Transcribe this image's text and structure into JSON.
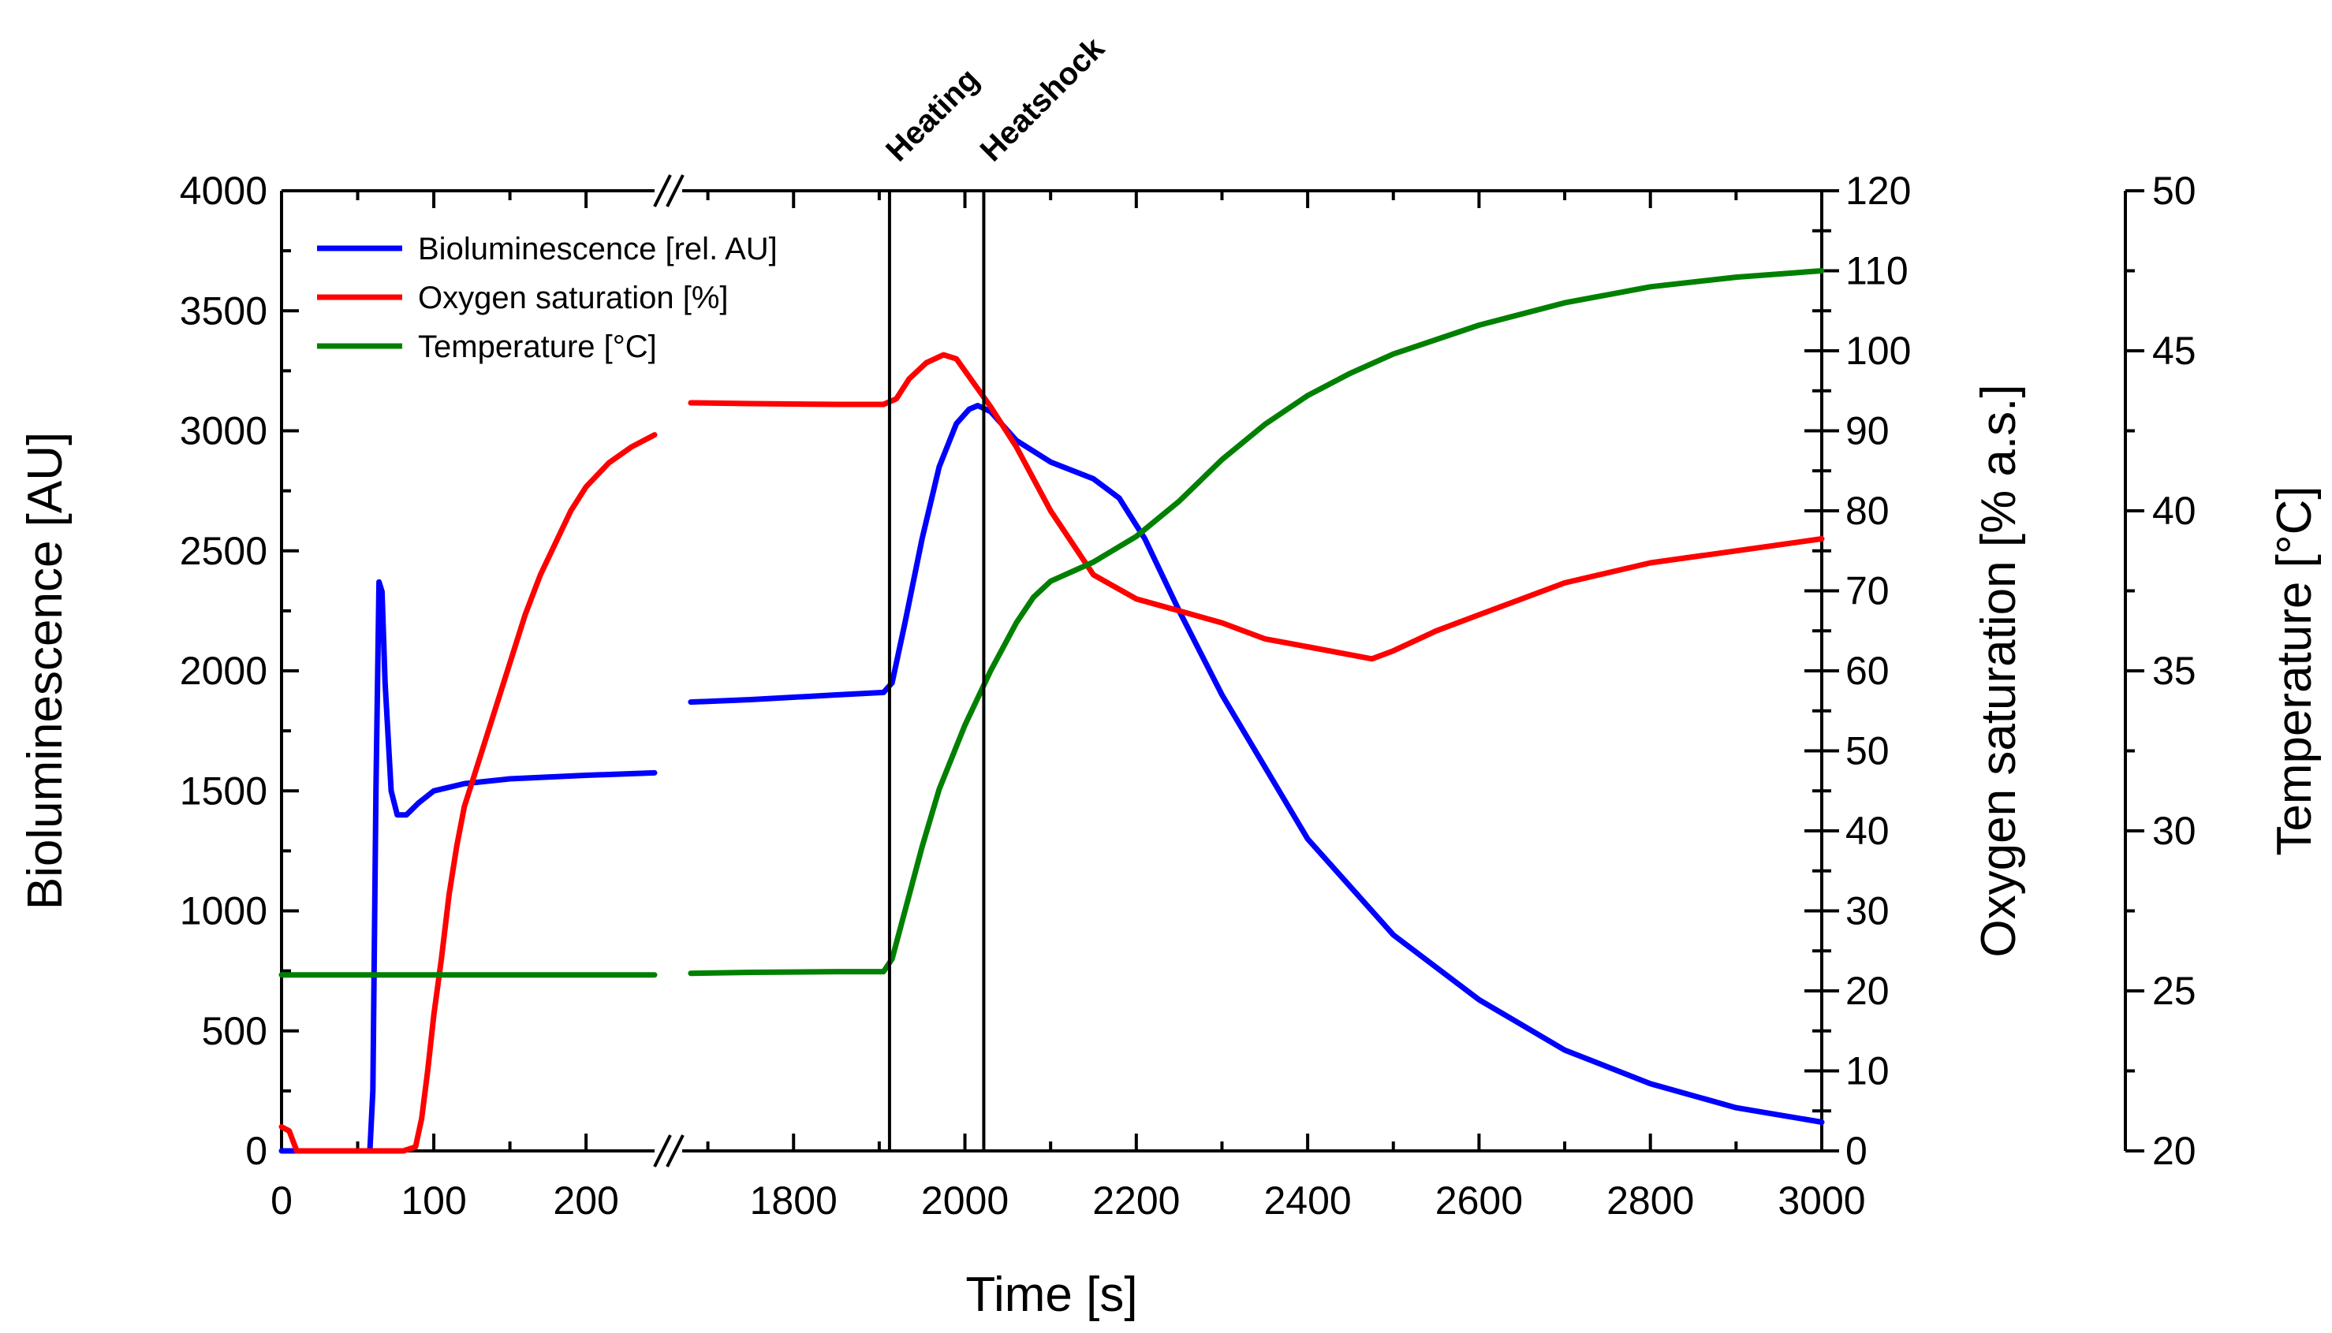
{
  "chart_data": {
    "type": "line",
    "title": "",
    "xlabel": "Time [s]",
    "ylabel_left": "Bioluminescence [AU]",
    "ylabel_right1": "Oxygen saturation [% a.s.]",
    "ylabel_right2": "Temperature [°C]",
    "x_axis": {
      "broken": true,
      "segment1": {
        "range": [
          0,
          245
        ],
        "ticks": [
          0,
          100,
          200
        ],
        "tick_labels": [
          "0",
          "100",
          "200"
        ]
      },
      "segment2": {
        "range": [
          1670,
          3000
        ],
        "ticks": [
          1800,
          2000,
          2200,
          2400,
          2600,
          2800,
          3000
        ],
        "tick_labels": [
          "1800",
          "2000",
          "2200",
          "2400",
          "2600",
          "2800",
          "3000"
        ]
      }
    },
    "y_left": {
      "range": [
        0,
        4000
      ],
      "ticks": [
        0,
        500,
        1000,
        1500,
        2000,
        2500,
        3000,
        3500,
        4000
      ],
      "tick_labels": [
        "0",
        "500",
        "1000",
        "1500",
        "2000",
        "2500",
        "3000",
        "3500",
        "4000"
      ]
    },
    "y_right1": {
      "range": [
        0,
        120
      ],
      "ticks": [
        0,
        10,
        20,
        30,
        40,
        50,
        60,
        70,
        80,
        90,
        100,
        110,
        120
      ],
      "tick_labels": [
        "0",
        "10",
        "20",
        "30",
        "40",
        "50",
        "60",
        "70",
        "80",
        "90",
        "100",
        "110",
        "120"
      ]
    },
    "y_right2": {
      "range": [
        20,
        50
      ],
      "ticks": [
        20,
        25,
        30,
        35,
        40,
        45,
        50
      ],
      "tick_labels": [
        "20",
        "25",
        "30",
        "35",
        "40",
        "45",
        "50"
      ]
    },
    "annotations": [
      {
        "label": "Heating",
        "x": 1912
      },
      {
        "label": "Heatshock",
        "x": 2022
      }
    ],
    "legend": {
      "placement": "top-left"
    },
    "series": [
      {
        "name": "Bioluminescence [rel. AU]",
        "axis": "left",
        "color": "#0000ff",
        "points": [
          [
            0,
            0
          ],
          [
            58,
            0
          ],
          [
            60,
            250
          ],
          [
            62,
            1500
          ],
          [
            64,
            2370
          ],
          [
            66,
            2330
          ],
          [
            68,
            1950
          ],
          [
            72,
            1500
          ],
          [
            76,
            1400
          ],
          [
            82,
            1400
          ],
          [
            90,
            1450
          ],
          [
            100,
            1500
          ],
          [
            120,
            1530
          ],
          [
            150,
            1550
          ],
          [
            200,
            1565
          ],
          [
            245,
            1575
          ],
          null,
          [
            1680,
            1870
          ],
          [
            1750,
            1880
          ],
          [
            1850,
            1900
          ],
          [
            1905,
            1910
          ],
          [
            1915,
            1950
          ],
          [
            1930,
            2200
          ],
          [
            1950,
            2550
          ],
          [
            1970,
            2850
          ],
          [
            1990,
            3030
          ],
          [
            2005,
            3090
          ],
          [
            2015,
            3105
          ],
          [
            2030,
            3080
          ],
          [
            2060,
            2960
          ],
          [
            2100,
            2870
          ],
          [
            2150,
            2800
          ],
          [
            2180,
            2720
          ],
          [
            2210,
            2550
          ],
          [
            2250,
            2250
          ],
          [
            2300,
            1900
          ],
          [
            2350,
            1600
          ],
          [
            2400,
            1300
          ],
          [
            2450,
            1100
          ],
          [
            2500,
            900
          ],
          [
            2600,
            630
          ],
          [
            2700,
            420
          ],
          [
            2800,
            280
          ],
          [
            2900,
            180
          ],
          [
            3000,
            120
          ]
        ]
      },
      {
        "name": "Oxygen saturation [%]",
        "axis": "right1",
        "color": "#ff0000",
        "points": [
          [
            0,
            3
          ],
          [
            5,
            2.5
          ],
          [
            10,
            0
          ],
          [
            50,
            0
          ],
          [
            80,
            0
          ],
          [
            88,
            0.5
          ],
          [
            92,
            4
          ],
          [
            96,
            10
          ],
          [
            100,
            17
          ],
          [
            105,
            24
          ],
          [
            110,
            32
          ],
          [
            115,
            38
          ],
          [
            120,
            43
          ],
          [
            130,
            49
          ],
          [
            140,
            55
          ],
          [
            150,
            61
          ],
          [
            160,
            67
          ],
          [
            170,
            72
          ],
          [
            180,
            76
          ],
          [
            190,
            80
          ],
          [
            200,
            83
          ],
          [
            215,
            86
          ],
          [
            230,
            88
          ],
          [
            245,
            89.5
          ],
          null,
          [
            1680,
            93.5
          ],
          [
            1750,
            93.4
          ],
          [
            1850,
            93.3
          ],
          [
            1905,
            93.3
          ],
          [
            1920,
            94
          ],
          [
            1935,
            96.5
          ],
          [
            1955,
            98.5
          ],
          [
            1975,
            99.5
          ],
          [
            1990,
            99
          ],
          [
            2010,
            96
          ],
          [
            2030,
            93
          ],
          [
            2060,
            88
          ],
          [
            2100,
            80
          ],
          [
            2150,
            72
          ],
          [
            2200,
            69
          ],
          [
            2250,
            67.5
          ],
          [
            2300,
            66
          ],
          [
            2350,
            64
          ],
          [
            2400,
            63
          ],
          [
            2450,
            62
          ],
          [
            2475,
            61.5
          ],
          [
            2500,
            62.5
          ],
          [
            2550,
            65
          ],
          [
            2600,
            67
          ],
          [
            2700,
            71
          ],
          [
            2800,
            73.5
          ],
          [
            2900,
            75
          ],
          [
            3000,
            76.5
          ]
        ]
      },
      {
        "name": "Temperature [°C]",
        "axis": "right2",
        "color": "#008000",
        "points": [
          [
            0,
            25.5
          ],
          [
            100,
            25.5
          ],
          [
            200,
            25.5
          ],
          [
            245,
            25.5
          ],
          null,
          [
            1680,
            25.55
          ],
          [
            1750,
            25.58
          ],
          [
            1850,
            25.6
          ],
          [
            1905,
            25.6
          ],
          [
            1915,
            26
          ],
          [
            1930,
            27.5
          ],
          [
            1950,
            29.5
          ],
          [
            1970,
            31.3
          ],
          [
            2000,
            33.3
          ],
          [
            2030,
            35
          ],
          [
            2060,
            36.5
          ],
          [
            2080,
            37.3
          ],
          [
            2100,
            37.8
          ],
          [
            2150,
            38.4
          ],
          [
            2200,
            39.2
          ],
          [
            2250,
            40.3
          ],
          [
            2300,
            41.6
          ],
          [
            2350,
            42.7
          ],
          [
            2400,
            43.6
          ],
          [
            2450,
            44.3
          ],
          [
            2500,
            44.9
          ],
          [
            2600,
            45.8
          ],
          [
            2700,
            46.5
          ],
          [
            2800,
            47
          ],
          [
            2900,
            47.3
          ],
          [
            3000,
            47.5
          ]
        ]
      }
    ]
  }
}
